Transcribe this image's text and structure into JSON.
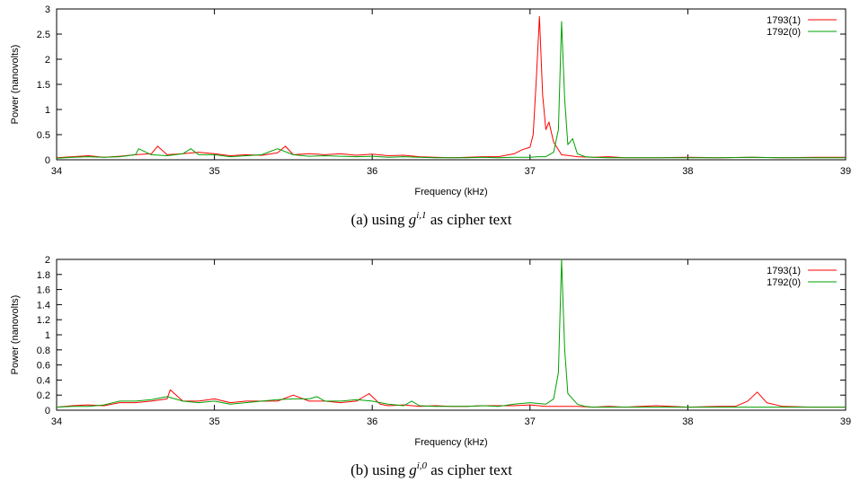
{
  "chart_data": [
    {
      "id": "a",
      "type": "line",
      "xlabel": "Frequency (kHz)",
      "ylabel": "Power (nanovolts)",
      "xlim": [
        34,
        39
      ],
      "ylim": [
        0,
        3
      ],
      "xticks": [
        "34",
        "35",
        "36",
        "37",
        "38",
        "39"
      ],
      "yticks": [
        "0",
        "0.5",
        "1",
        "1.5",
        "2",
        "2.5",
        "3"
      ],
      "grid": false,
      "legend_position": "top-right",
      "caption": {
        "prefix": "(a) using ",
        "symbol": "g",
        "sup": "i,1",
        "suffix": " as cipher text"
      },
      "series": [
        {
          "name": "1793(1)",
          "color": "#ff0000",
          "x": [
            34.0,
            34.1,
            34.2,
            34.3,
            34.4,
            34.5,
            34.6,
            34.64,
            34.7,
            34.8,
            34.9,
            35.0,
            35.1,
            35.2,
            35.3,
            35.4,
            35.45,
            35.5,
            35.6,
            35.7,
            35.8,
            35.9,
            36.0,
            36.1,
            36.2,
            36.3,
            36.4,
            36.5,
            36.6,
            36.7,
            36.8,
            36.9,
            36.95,
            37.0,
            37.02,
            37.04,
            37.06,
            37.08,
            37.1,
            37.12,
            37.15,
            37.2,
            37.3,
            37.4,
            37.5,
            37.6,
            37.8,
            38.0,
            38.2,
            38.4,
            38.6,
            38.8,
            39.0
          ],
          "values": [
            0.04,
            0.06,
            0.08,
            0.05,
            0.07,
            0.1,
            0.12,
            0.27,
            0.1,
            0.12,
            0.15,
            0.12,
            0.08,
            0.1,
            0.09,
            0.14,
            0.27,
            0.1,
            0.12,
            0.1,
            0.12,
            0.09,
            0.11,
            0.08,
            0.09,
            0.06,
            0.05,
            0.04,
            0.05,
            0.06,
            0.06,
            0.12,
            0.2,
            0.25,
            0.5,
            1.6,
            2.85,
            1.3,
            0.6,
            0.75,
            0.35,
            0.1,
            0.06,
            0.05,
            0.06,
            0.04,
            0.04,
            0.05,
            0.04,
            0.05,
            0.04,
            0.05,
            0.05
          ]
        },
        {
          "name": "1792(0)",
          "color": "#00a000",
          "x": [
            34.0,
            34.1,
            34.2,
            34.3,
            34.4,
            34.5,
            34.52,
            34.6,
            34.7,
            34.8,
            34.85,
            34.9,
            35.0,
            35.1,
            35.2,
            35.3,
            35.4,
            35.5,
            35.6,
            35.7,
            35.8,
            35.9,
            36.0,
            36.1,
            36.2,
            36.3,
            36.4,
            36.5,
            36.6,
            36.7,
            36.8,
            36.9,
            37.0,
            37.05,
            37.1,
            37.15,
            37.18,
            37.2,
            37.22,
            37.24,
            37.27,
            37.3,
            37.35,
            37.4,
            37.5,
            37.6,
            37.8,
            38.0,
            38.2,
            38.4,
            38.6,
            38.8,
            39.0
          ],
          "values": [
            0.03,
            0.05,
            0.06,
            0.05,
            0.06,
            0.1,
            0.22,
            0.1,
            0.08,
            0.12,
            0.22,
            0.1,
            0.1,
            0.06,
            0.08,
            0.1,
            0.22,
            0.1,
            0.07,
            0.08,
            0.07,
            0.06,
            0.07,
            0.05,
            0.06,
            0.05,
            0.04,
            0.04,
            0.04,
            0.05,
            0.04,
            0.05,
            0.05,
            0.06,
            0.06,
            0.15,
            0.6,
            2.75,
            1.2,
            0.3,
            0.42,
            0.12,
            0.06,
            0.05,
            0.04,
            0.04,
            0.04,
            0.04,
            0.04,
            0.05,
            0.04,
            0.04,
            0.04
          ]
        }
      ]
    },
    {
      "id": "b",
      "type": "line",
      "xlabel": "Frequency (kHz)",
      "ylabel": "Power (nanovolts)",
      "xlim": [
        34,
        39
      ],
      "ylim": [
        0,
        2
      ],
      "xticks": [
        "34",
        "35",
        "36",
        "37",
        "38",
        "39"
      ],
      "yticks": [
        "0",
        "0.2",
        "0.4",
        "0.6",
        "0.8",
        "1",
        "1.2",
        "1.4",
        "1.6",
        "1.8",
        "2"
      ],
      "grid": false,
      "legend_position": "top-right",
      "caption": {
        "prefix": "(b) using ",
        "symbol": "g",
        "sup": "i,0",
        "suffix": " as cipher text"
      },
      "series": [
        {
          "name": "1793(1)",
          "color": "#ff0000",
          "x": [
            34.0,
            34.1,
            34.2,
            34.3,
            34.4,
            34.5,
            34.6,
            34.7,
            34.72,
            34.8,
            34.9,
            35.0,
            35.1,
            35.2,
            35.3,
            35.4,
            35.5,
            35.6,
            35.7,
            35.8,
            35.9,
            35.98,
            36.05,
            36.1,
            36.2,
            36.3,
            36.4,
            36.5,
            36.6,
            36.7,
            36.8,
            36.9,
            37.0,
            37.1,
            37.2,
            37.3,
            37.4,
            37.5,
            37.6,
            37.8,
            38.0,
            38.2,
            38.3,
            38.38,
            38.44,
            38.5,
            38.6,
            38.8,
            39.0
          ],
          "values": [
            0.04,
            0.06,
            0.07,
            0.06,
            0.1,
            0.1,
            0.12,
            0.15,
            0.27,
            0.12,
            0.12,
            0.15,
            0.1,
            0.12,
            0.12,
            0.12,
            0.2,
            0.12,
            0.12,
            0.1,
            0.12,
            0.22,
            0.08,
            0.06,
            0.07,
            0.05,
            0.06,
            0.05,
            0.05,
            0.06,
            0.06,
            0.06,
            0.07,
            0.05,
            0.05,
            0.05,
            0.04,
            0.05,
            0.04,
            0.06,
            0.04,
            0.05,
            0.05,
            0.12,
            0.24,
            0.1,
            0.05,
            0.04,
            0.04
          ]
        },
        {
          "name": "1792(0)",
          "color": "#00a000",
          "x": [
            34.0,
            34.1,
            34.2,
            34.3,
            34.4,
            34.5,
            34.6,
            34.7,
            34.8,
            34.9,
            35.0,
            35.1,
            35.2,
            35.3,
            35.4,
            35.5,
            35.6,
            35.65,
            35.7,
            35.8,
            35.9,
            36.0,
            36.1,
            36.2,
            36.25,
            36.3,
            36.4,
            36.5,
            36.6,
            36.7,
            36.8,
            36.9,
            37.0,
            37.1,
            37.15,
            37.18,
            37.2,
            37.22,
            37.24,
            37.27,
            37.3,
            37.35,
            37.4,
            37.5,
            37.6,
            37.8,
            38.0,
            38.2,
            38.4,
            38.6,
            38.8,
            39.0
          ],
          "values": [
            0.04,
            0.05,
            0.05,
            0.07,
            0.12,
            0.12,
            0.14,
            0.18,
            0.12,
            0.1,
            0.12,
            0.08,
            0.1,
            0.12,
            0.14,
            0.15,
            0.15,
            0.18,
            0.12,
            0.12,
            0.14,
            0.12,
            0.08,
            0.06,
            0.12,
            0.06,
            0.05,
            0.05,
            0.05,
            0.06,
            0.05,
            0.08,
            0.1,
            0.08,
            0.15,
            0.5,
            2.0,
            0.8,
            0.22,
            0.15,
            0.08,
            0.05,
            0.04,
            0.04,
            0.04,
            0.04,
            0.04,
            0.04,
            0.04,
            0.04,
            0.04,
            0.04
          ]
        }
      ]
    }
  ]
}
